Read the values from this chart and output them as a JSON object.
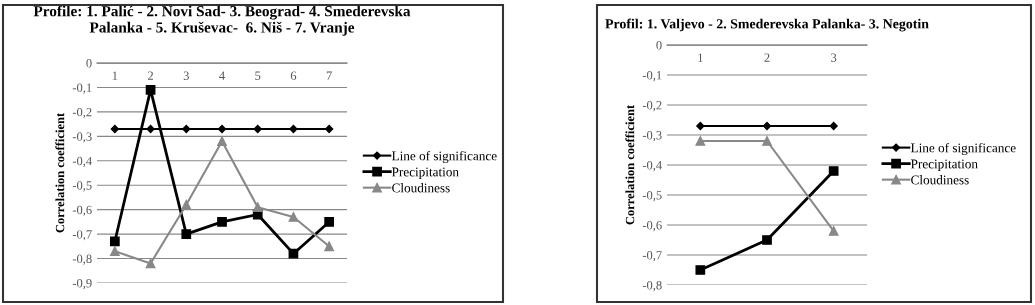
{
  "chart_data": [
    {
      "type": "line",
      "title": "Profile: 1. Palić - 2. Novi Sad- 3. Beograd- 4. Smederevska\nPalanka - 5. Kruševac-  6. Niš - 7. Vranje",
      "ylabel": "Correlation coefficient",
      "categories": [
        "1",
        "2",
        "3",
        "4",
        "5",
        "6",
        "7"
      ],
      "ylim": [
        -0.9,
        0
      ],
      "yticks": [
        0,
        {
          "value": -0.1,
          "label": "-0,1"
        },
        {
          "value": -0.2,
          "label": "-0,2"
        },
        {
          "value": -0.3,
          "label": "-0,3"
        },
        {
          "value": -0.4,
          "label": "-0,4"
        },
        {
          "value": -0.5,
          "label": "-0,5"
        },
        {
          "value": -0.6,
          "label": "-0,6"
        },
        {
          "value": -0.7,
          "label": "-0,7"
        },
        {
          "value": -0.8,
          "label": "-0,8"
        },
        {
          "value": -0.9,
          "label": "-0,9"
        }
      ],
      "grid": "y",
      "legend": "right",
      "series": [
        {
          "name": "Line of significance",
          "color": "#000000",
          "marker": "diamond",
          "values": [
            -0.27,
            -0.27,
            -0.27,
            -0.27,
            -0.27,
            -0.27,
            -0.27
          ]
        },
        {
          "name": "Precipitation",
          "color": "#000000",
          "marker": "square",
          "values": [
            -0.73,
            -0.11,
            -0.7,
            -0.65,
            -0.62,
            -0.78,
            -0.65
          ]
        },
        {
          "name": "Cloudiness",
          "color": "#888888",
          "marker": "triangle",
          "values": [
            -0.77,
            -0.82,
            -0.58,
            -0.32,
            -0.59,
            -0.63,
            -0.75
          ]
        }
      ]
    },
    {
      "type": "line",
      "title": "Profil: 1. Valjevo - 2. Smederevska Palanka- 3. Negotin",
      "ylabel": "Correlation coefficient",
      "categories": [
        "1",
        "2",
        "3"
      ],
      "ylim": [
        -0.8,
        0
      ],
      "yticks": [
        0,
        {
          "value": -0.1,
          "label": "-0,1"
        },
        {
          "value": -0.2,
          "label": "-0,2"
        },
        {
          "value": -0.3,
          "label": "-0,3"
        },
        {
          "value": -0.4,
          "label": "-0,4"
        },
        {
          "value": -0.5,
          "label": "-0,5"
        },
        {
          "value": -0.6,
          "label": "-0,6"
        },
        {
          "value": -0.7,
          "label": "-0,7"
        },
        {
          "value": -0.8,
          "label": "-0,8"
        }
      ],
      "grid": "y",
      "legend": "right",
      "series": [
        {
          "name": "Line of significance",
          "color": "#000000",
          "marker": "diamond",
          "values": [
            -0.27,
            -0.27,
            -0.27
          ]
        },
        {
          "name": "Precipitation",
          "color": "#000000",
          "marker": "square",
          "values": [
            -0.75,
            -0.65,
            -0.42
          ]
        },
        {
          "name": "Cloudiness",
          "color": "#888888",
          "marker": "triangle",
          "values": [
            -0.32,
            -0.32,
            -0.62
          ]
        }
      ]
    }
  ]
}
